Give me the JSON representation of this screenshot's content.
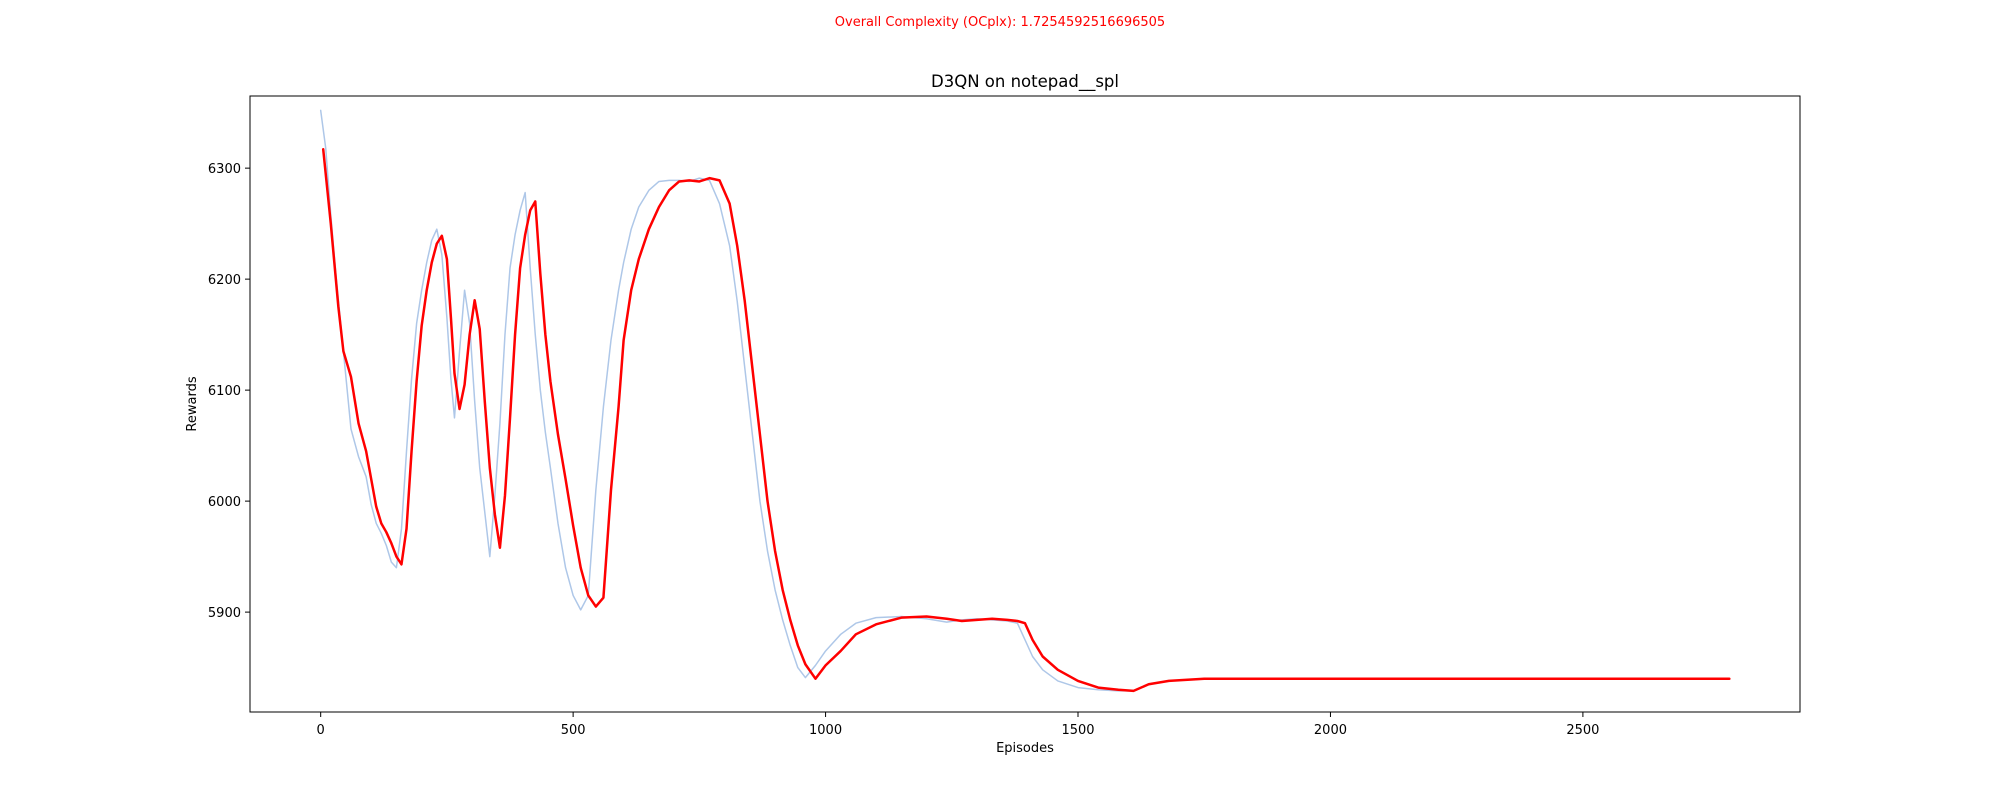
{
  "suptitle": "Overall Complexity (OCplx): 1.7254592516696505",
  "chart_data": {
    "type": "line",
    "title": "D3QN on notepad__spl",
    "xlabel": "Episodes",
    "ylabel": "Rewards",
    "xlim": [
      -140,
      2930
    ],
    "ylim": [
      5810,
      6365
    ],
    "xticks": [
      0,
      500,
      1000,
      1500,
      2000,
      2500
    ],
    "yticks": [
      5900,
      6000,
      6100,
      6200,
      6300
    ],
    "grid": false,
    "legend": "none",
    "colors": {
      "raw": "#aec7e8",
      "smoothed": "#ff0000",
      "suptitle": "#ff0000"
    },
    "series": [
      {
        "x": [
          0,
          10,
          20,
          30,
          45,
          60,
          75,
          90,
          100,
          110,
          120,
          130,
          140,
          150,
          160,
          170,
          180,
          190,
          200,
          210,
          220,
          230,
          240,
          250,
          258,
          265,
          275,
          285,
          295,
          305,
          315,
          325,
          335,
          345,
          355,
          365,
          375,
          385,
          395,
          405,
          415,
          425,
          435,
          445,
          455,
          470,
          485,
          500,
          515,
          530,
          545,
          560,
          575,
          590,
          600,
          615,
          630,
          650,
          670,
          690,
          710,
          730,
          750,
          770,
          790,
          810,
          825,
          840,
          855,
          870,
          885,
          900,
          915,
          930,
          945,
          960,
          980,
          1000,
          1030,
          1060,
          1100,
          1150,
          1200,
          1240,
          1270,
          1300,
          1330,
          1360,
          1380,
          1395,
          1410,
          1430,
          1460,
          1500,
          1540,
          1580,
          1610,
          1640,
          1680,
          1750,
          1800,
          2000,
          2500,
          2790
        ],
        "values": [
          6352,
          6318,
          6258,
          6205,
          6135,
          6065,
          6040,
          6022,
          5997,
          5980,
          5971,
          5960,
          5945,
          5940,
          5975,
          6045,
          6110,
          6160,
          6190,
          6215,
          6235,
          6245,
          6222,
          6165,
          6110,
          6075,
          6135,
          6190,
          6160,
          6090,
          6030,
          5990,
          5950,
          6005,
          6070,
          6150,
          6210,
          6240,
          6262,
          6278,
          6210,
          6150,
          6100,
          6062,
          6030,
          5980,
          5940,
          5915,
          5902,
          5915,
          6010,
          6085,
          6145,
          6190,
          6215,
          6245,
          6265,
          6280,
          6288,
          6289,
          6289,
          6288,
          6291,
          6289,
          6268,
          6230,
          6180,
          6120,
          6060,
          6000,
          5955,
          5920,
          5893,
          5870,
          5850,
          5841,
          5852,
          5865,
          5880,
          5890,
          5895,
          5896,
          5894,
          5891,
          5893,
          5894,
          5893,
          5892,
          5890,
          5875,
          5860,
          5848,
          5838,
          5832,
          5830,
          5829,
          5829,
          5835,
          5838,
          5840,
          5840,
          5840,
          5840,
          5840
        ]
      },
      {
        "x": [
          5,
          20,
          35,
          45,
          60,
          75,
          90,
          100,
          110,
          120,
          130,
          140,
          150,
          160,
          170,
          180,
          190,
          200,
          210,
          220,
          230,
          240,
          250,
          258,
          265,
          275,
          285,
          295,
          305,
          315,
          325,
          335,
          345,
          355,
          365,
          375,
          385,
          395,
          405,
          415,
          425,
          435,
          445,
          455,
          470,
          485,
          500,
          515,
          530,
          545,
          560,
          575,
          590,
          600,
          615,
          630,
          650,
          670,
          690,
          710,
          730,
          750,
          770,
          790,
          810,
          825,
          840,
          855,
          870,
          885,
          900,
          915,
          930,
          945,
          960,
          980,
          1000,
          1030,
          1060,
          1100,
          1150,
          1200,
          1240,
          1270,
          1300,
          1330,
          1360,
          1380,
          1395,
          1410,
          1430,
          1460,
          1500,
          1540,
          1580,
          1610,
          1640,
          1680,
          1750,
          1800,
          2000,
          2500,
          2790
        ],
        "values": [
          6317,
          6250,
          6175,
          6135,
          6112,
          6070,
          6045,
          6020,
          5995,
          5980,
          5972,
          5962,
          5950,
          5943,
          5975,
          6045,
          6108,
          6158,
          6190,
          6215,
          6232,
          6239,
          6218,
          6165,
          6115,
          6083,
          6105,
          6150,
          6181,
          6155,
          6090,
          6030,
          5988,
          5958,
          6005,
          6075,
          6150,
          6210,
          6240,
          6262,
          6270,
          6205,
          6150,
          6108,
          6060,
          6020,
          5978,
          5940,
          5915,
          5905,
          5913,
          6010,
          6085,
          6145,
          6190,
          6218,
          6245,
          6265,
          6280,
          6288,
          6289,
          6288,
          6291,
          6289,
          6268,
          6230,
          6180,
          6120,
          6060,
          6000,
          5955,
          5920,
          5893,
          5870,
          5853,
          5840,
          5852,
          5865,
          5880,
          5889,
          5895,
          5896,
          5894,
          5892,
          5893,
          5894,
          5893,
          5892,
          5890,
          5875,
          5860,
          5848,
          5838,
          5832,
          5830,
          5829,
          5835,
          5838,
          5840,
          5840,
          5840,
          5840,
          5840
        ]
      }
    ]
  }
}
